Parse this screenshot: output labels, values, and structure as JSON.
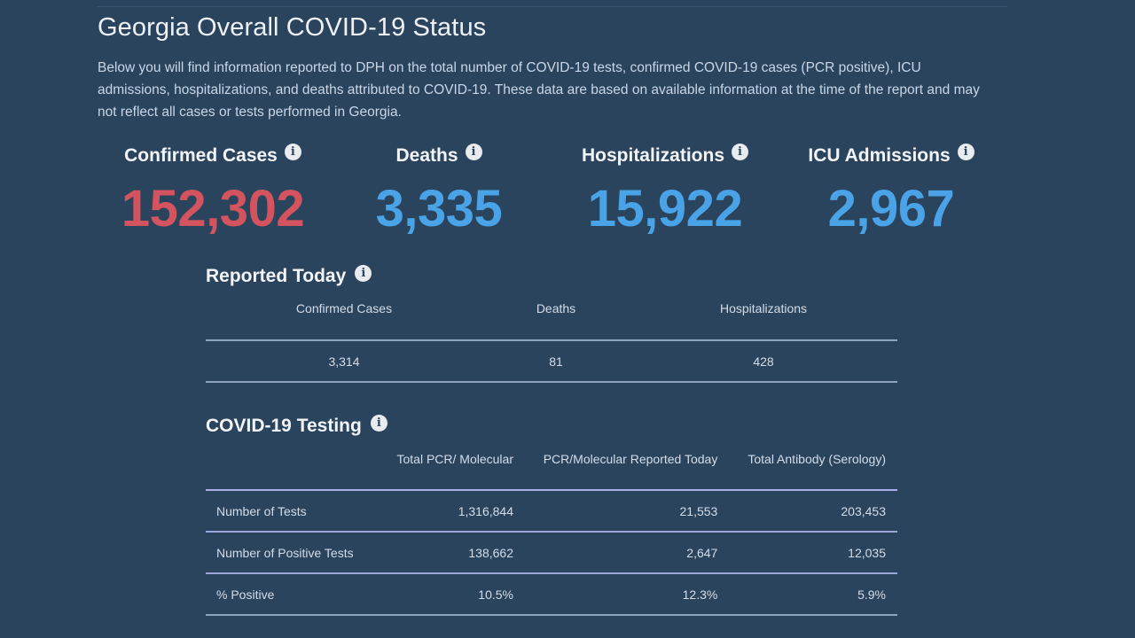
{
  "page": {
    "title": "Georgia Overall COVID-19 Status",
    "intro": "Below you will find information reported to DPH on the total number of COVID-19 tests, confirmed COVID-19 cases (PCR positive), ICU admissions, hospitalizations, and deaths attributed to COVID-19. These data are based on available information at the time of the report and may not reflect all cases or tests performed in Georgia."
  },
  "colors": {
    "background": "#2b445e",
    "cases_accent": "#d3545f",
    "stat_accent": "#4aa3e6"
  },
  "icons": {
    "info": "info-icon",
    "info_glyph": "i"
  },
  "stats": [
    {
      "label": "Confirmed Cases",
      "value": "152,302",
      "color": "#d3545f"
    },
    {
      "label": "Deaths",
      "value": "3,335",
      "color": "#4aa3e6"
    },
    {
      "label": "Hospitalizations",
      "value": "15,922",
      "color": "#4aa3e6"
    },
    {
      "label": "ICU Admissions",
      "value": "2,967",
      "color": "#4aa3e6"
    }
  ],
  "reported_today": {
    "title": "Reported Today",
    "columns": [
      "Confirmed Cases",
      "Deaths",
      "Hospitalizations"
    ],
    "values": [
      "3,314",
      "81",
      "428"
    ]
  },
  "testing": {
    "title": "COVID-19 Testing",
    "columns": [
      "",
      "Total PCR/ Molecular",
      "PCR/Molecular Reported Today",
      "Total Antibody (Serology)"
    ],
    "rows": [
      {
        "label": "Number of Tests",
        "values": [
          "1,316,844",
          "21,553",
          "203,453"
        ]
      },
      {
        "label": "Number of Positive Tests",
        "values": [
          "138,662",
          "2,647",
          "12,035"
        ]
      },
      {
        "label": "% Positive",
        "values": [
          "10.5%",
          "12.3%",
          "5.9%"
        ]
      }
    ]
  }
}
